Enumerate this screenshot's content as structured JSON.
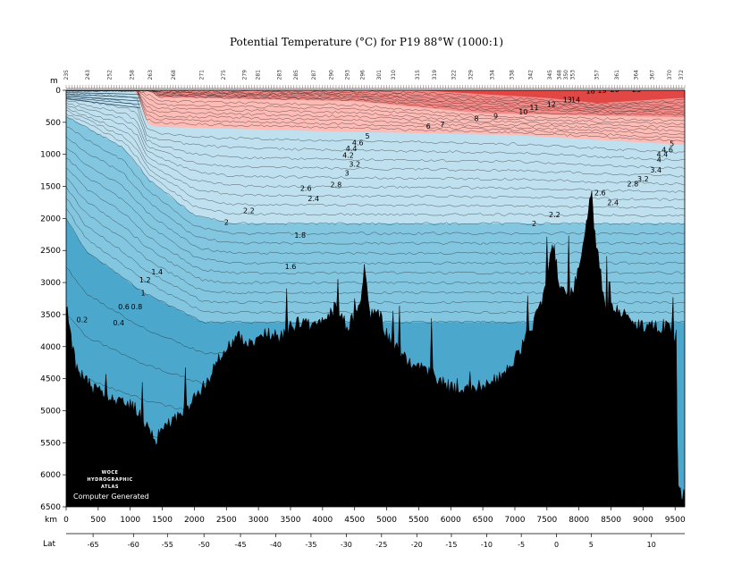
{
  "chart_data": {
    "type": "heatmap",
    "title": "Potential Temperature (°C) for P19 88°W (1000:1)",
    "y_unit_label": "m",
    "x_unit_label": "km",
    "lat_label": "Lat",
    "ylim": [
      0,
      6500
    ],
    "xlim": [
      0,
      9650
    ],
    "y_ticks": [
      0,
      500,
      1000,
      1500,
      2000,
      2500,
      3000,
      3500,
      4000,
      4500,
      5000,
      5500,
      6000,
      6500
    ],
    "x_ticks": [
      0,
      500,
      1000,
      1500,
      2000,
      2500,
      3000,
      3500,
      4000,
      4500,
      5000,
      5500,
      6000,
      6500,
      7000,
      7500,
      8000,
      8500,
      9000,
      9500
    ],
    "lat_ticks": [
      {
        "km": 420,
        "label": "-65"
      },
      {
        "km": 1050,
        "label": "-60"
      },
      {
        "km": 1580,
        "label": "-55"
      },
      {
        "km": 2150,
        "label": "-50"
      },
      {
        "km": 2720,
        "label": "-45"
      },
      {
        "km": 3270,
        "label": "-40"
      },
      {
        "km": 3820,
        "label": "-35"
      },
      {
        "km": 4370,
        "label": "-30"
      },
      {
        "km": 4920,
        "label": "-25"
      },
      {
        "km": 5470,
        "label": "-20"
      },
      {
        "km": 6010,
        "label": "-15"
      },
      {
        "km": 6560,
        "label": "-10"
      },
      {
        "km": 7100,
        "label": "-5"
      },
      {
        "km": 7650,
        "label": "0"
      },
      {
        "km": 8190,
        "label": "5"
      },
      {
        "km": 9130,
        "label": "10"
      }
    ],
    "station_labels": [
      {
        "km": 5,
        "label": "235"
      },
      {
        "km": 340,
        "label": "243"
      },
      {
        "km": 680,
        "label": "252"
      },
      {
        "km": 1030,
        "label": "258"
      },
      {
        "km": 1320,
        "label": "263"
      },
      {
        "km": 1680,
        "label": "268"
      },
      {
        "km": 2120,
        "label": "271"
      },
      {
        "km": 2460,
        "label": "275"
      },
      {
        "km": 2790,
        "label": "279"
      },
      {
        "km": 3000,
        "label": "281"
      },
      {
        "km": 3330,
        "label": "283"
      },
      {
        "km": 3590,
        "label": "285"
      },
      {
        "km": 3870,
        "label": "287"
      },
      {
        "km": 4140,
        "label": "290"
      },
      {
        "km": 4390,
        "label": "293"
      },
      {
        "km": 4630,
        "label": "296"
      },
      {
        "km": 4890,
        "label": "301"
      },
      {
        "km": 5110,
        "label": "310"
      },
      {
        "km": 5490,
        "label": "315"
      },
      {
        "km": 5750,
        "label": "319"
      },
      {
        "km": 6050,
        "label": "322"
      },
      {
        "km": 6320,
        "label": "329"
      },
      {
        "km": 6650,
        "label": "334"
      },
      {
        "km": 6960,
        "label": "338"
      },
      {
        "km": 7250,
        "label": "342"
      },
      {
        "km": 7550,
        "label": "345"
      },
      {
        "km": 7700,
        "label": "348"
      },
      {
        "km": 7800,
        "label": "350"
      },
      {
        "km": 7910,
        "label": "353"
      },
      {
        "km": 8280,
        "label": "357"
      },
      {
        "km": 8600,
        "label": "361"
      },
      {
        "km": 8900,
        "label": "364"
      },
      {
        "km": 9150,
        "label": "367"
      },
      {
        "km": 9420,
        "label": "370"
      },
      {
        "km": 9600,
        "label": "372"
      }
    ],
    "bands": [
      {
        "name": "0-1.4",
        "color": "#4ba7cc"
      },
      {
        "name": "1.4-2",
        "color": "#82c6e0"
      },
      {
        "name": "2-4",
        "color": "#bfe0ef"
      },
      {
        "name": "4-7",
        "color": "#ffbcb6"
      },
      {
        "name": "7-15",
        "color": "#f58b88"
      },
      {
        "name": ">15",
        "color": "#e04745"
      }
    ],
    "seafloor_depth_m": [
      [
        0,
        3350
      ],
      [
        150,
        4300
      ],
      [
        400,
        4650
      ],
      [
        700,
        4800
      ],
      [
        900,
        4850
      ],
      [
        1000,
        4900
      ],
      [
        1150,
        5050
      ],
      [
        1300,
        5300
      ],
      [
        1400,
        5450
      ],
      [
        1500,
        5250
      ],
      [
        1700,
        5100
      ],
      [
        1900,
        4950
      ],
      [
        2100,
        4700
      ],
      [
        2300,
        4350
      ],
      [
        2500,
        4000
      ],
      [
        2700,
        3850
      ],
      [
        2900,
        3950
      ],
      [
        3100,
        3800
      ],
      [
        3300,
        3850
      ],
      [
        3500,
        3700
      ],
      [
        3700,
        3600
      ],
      [
        3900,
        3700
      ],
      [
        4050,
        3500
      ],
      [
        4200,
        3400
      ],
      [
        4300,
        3550
      ],
      [
        4400,
        3700
      ],
      [
        4500,
        3500
      ],
      [
        4600,
        3300
      ],
      [
        4650,
        2750
      ],
      [
        4750,
        3500
      ],
      [
        4850,
        3400
      ],
      [
        5000,
        3800
      ],
      [
        5200,
        4100
      ],
      [
        5400,
        4300
      ],
      [
        5600,
        4350
      ],
      [
        5800,
        4500
      ],
      [
        6000,
        4650
      ],
      [
        6200,
        4700
      ],
      [
        6400,
        4650
      ],
      [
        6600,
        4550
      ],
      [
        6800,
        4450
      ],
      [
        7000,
        4200
      ],
      [
        7200,
        3800
      ],
      [
        7400,
        3400
      ],
      [
        7500,
        3000
      ],
      [
        7550,
        2600
      ],
      [
        7600,
        2400
      ],
      [
        7650,
        2700
      ],
      [
        7700,
        3100
      ],
      [
        7800,
        3200
      ],
      [
        7900,
        3150
      ],
      [
        8000,
        2700
      ],
      [
        8100,
        2300
      ],
      [
        8150,
        1800
      ],
      [
        8200,
        1600
      ],
      [
        8250,
        2300
      ],
      [
        8300,
        2600
      ],
      [
        8400,
        3300
      ],
      [
        8450,
        3450
      ],
      [
        8500,
        3400
      ],
      [
        8650,
        3450
      ],
      [
        8800,
        3600
      ],
      [
        8950,
        3650
      ],
      [
        9100,
        3700
      ],
      [
        9300,
        3700
      ],
      [
        9450,
        3750
      ],
      [
        9500,
        3900
      ],
      [
        9550,
        6200
      ],
      [
        9600,
        6300
      ],
      [
        9650,
        6300
      ]
    ],
    "contour_labels": [
      {
        "km": 250,
        "depth": 3620,
        "label": "0.2"
      },
      {
        "km": 820,
        "depth": 3670,
        "label": "0.4"
      },
      {
        "km": 900,
        "depth": 3420,
        "label": "0.6"
      },
      {
        "km": 1100,
        "depth": 3420,
        "label": "0.8"
      },
      {
        "km": 1200,
        "depth": 3200,
        "label": "1"
      },
      {
        "km": 1230,
        "depth": 3000,
        "label": "1.2"
      },
      {
        "km": 1420,
        "depth": 2870,
        "label": "1.4"
      },
      {
        "km": 3500,
        "depth": 2790,
        "label": "1.6"
      },
      {
        "km": 3650,
        "depth": 2300,
        "label": "1.8"
      },
      {
        "km": 2500,
        "depth": 2100,
        "label": "2"
      },
      {
        "km": 7300,
        "depth": 2120,
        "label": "2"
      },
      {
        "km": 2850,
        "depth": 1920,
        "label": "2.2"
      },
      {
        "km": 7620,
        "depth": 1980,
        "label": "2.2"
      },
      {
        "km": 3860,
        "depth": 1730,
        "label": "2.4"
      },
      {
        "km": 8530,
        "depth": 1790,
        "label": "2.4"
      },
      {
        "km": 3740,
        "depth": 1570,
        "label": "2.6"
      },
      {
        "km": 8330,
        "depth": 1640,
        "label": "2.6"
      },
      {
        "km": 4210,
        "depth": 1510,
        "label": "2.8"
      },
      {
        "km": 8840,
        "depth": 1500,
        "label": "2.8"
      },
      {
        "km": 4380,
        "depth": 1330,
        "label": "3"
      },
      {
        "km": 9000,
        "depth": 1420,
        "label": "3.2"
      },
      {
        "km": 4500,
        "depth": 1190,
        "label": "3.2"
      },
      {
        "km": 9200,
        "depth": 1280,
        "label": "3.4"
      },
      {
        "km": 6400,
        "depth": 480,
        "label": "8"
      },
      {
        "km": 6700,
        "depth": 440,
        "label": "9"
      },
      {
        "km": 7130,
        "depth": 380,
        "label": "10"
      },
      {
        "km": 7300,
        "depth": 310,
        "label": "11"
      },
      {
        "km": 7570,
        "depth": 260,
        "label": "12"
      },
      {
        "km": 7820,
        "depth": 190,
        "label": "13"
      },
      {
        "km": 7950,
        "depth": 190,
        "label": "14"
      },
      {
        "km": 5650,
        "depth": 600,
        "label": "6"
      },
      {
        "km": 5870,
        "depth": 570,
        "label": "7"
      },
      {
        "km": 4700,
        "depth": 750,
        "label": "5"
      },
      {
        "km": 4550,
        "depth": 860,
        "label": "4.6"
      },
      {
        "km": 4450,
        "depth": 950,
        "label": "4.4"
      },
      {
        "km": 4400,
        "depth": 1050,
        "label": "4.2"
      },
      {
        "km": 9450,
        "depth": 870,
        "label": "5"
      },
      {
        "km": 9380,
        "depth": 970,
        "label": "4.6"
      },
      {
        "km": 9300,
        "depth": 1040,
        "label": "4.4"
      },
      {
        "km": 9250,
        "depth": 1120,
        "label": "4"
      },
      {
        "km": 8180,
        "depth": 50,
        "label": "18"
      },
      {
        "km": 8360,
        "depth": 40,
        "label": "19"
      },
      {
        "km": 8560,
        "depth": 30,
        "label": "20"
      },
      {
        "km": 8900,
        "depth": 30,
        "label": "23"
      }
    ],
    "logo_lines": [
      "WOCE",
      "HYDROGRAPHIC",
      "ATLAS"
    ],
    "logo_footer": "Computer Generated"
  }
}
